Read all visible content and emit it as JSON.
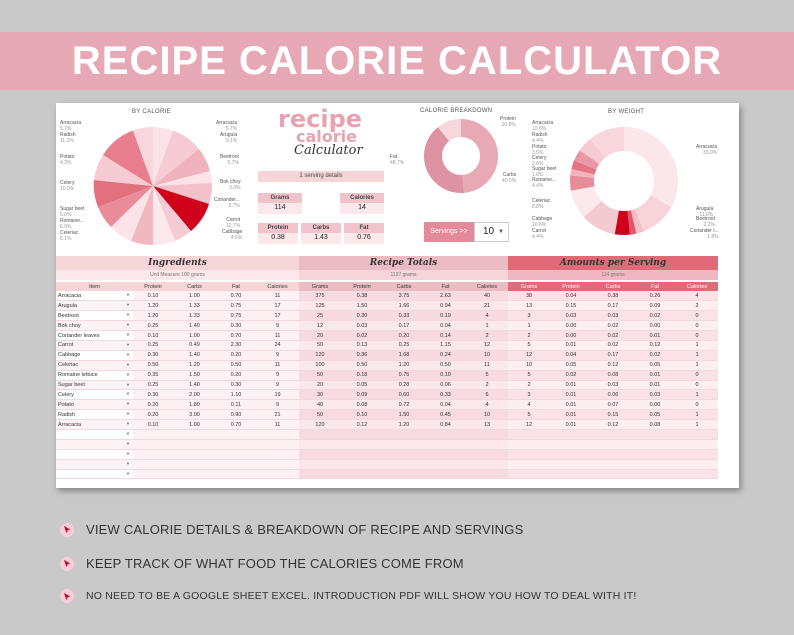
{
  "banner": {
    "title": "RECIPE CALORIE CALCULATOR"
  },
  "charts": {
    "by_calorie": {
      "title": "BY CALORIE",
      "left_labels": [
        {
          "name": "Arracacia",
          "pct": "5.7%"
        },
        {
          "name": "Radish",
          "pct": "11.2%"
        },
        {
          "name": "Potato",
          "pct": "4.3%"
        },
        {
          "name": "Celery",
          "pct": "10.0%"
        },
        {
          "name": "Sugar beet",
          "pct": "5.0%"
        },
        {
          "name": "Romaine...",
          "pct": "6.9%"
        },
        {
          "name": "Celeriac",
          "pct": "6.1%"
        }
      ],
      "right_labels": [
        {
          "name": "Arracacia",
          "pct": "5.7%"
        },
        {
          "name": "Arugula",
          "pct": "9.1%"
        },
        {
          "name": "Beetroot",
          "pct": "5.7%"
        },
        {
          "name": "Bok choy",
          "pct": "3.0%"
        },
        {
          "name": "Coriander...",
          "pct": "5.7%"
        },
        {
          "name": "Carrot",
          "pct": "12.7%"
        },
        {
          "name": "Cabbage",
          "pct": "4.6%"
        }
      ]
    },
    "breakdown": {
      "title": "CALORIE BREAKDOWN",
      "labels": [
        {
          "name": "Protein",
          "pct": "10.8%"
        },
        {
          "name": "Fat",
          "pct": "48.7%"
        },
        {
          "name": "Carbs",
          "pct": "40.5%"
        }
      ]
    },
    "by_weight": {
      "title": "BY WEIGHT",
      "left_labels": [
        {
          "name": "Arracacia",
          "pct": "10.6%"
        },
        {
          "name": "Radish",
          "pct": "4.4%"
        },
        {
          "name": "Potato",
          "pct": "3.5%"
        },
        {
          "name": "Celery",
          "pct": "2.6%"
        },
        {
          "name": "Sugar beet",
          "pct": "1.8%"
        },
        {
          "name": "Romaine...",
          "pct": "4.4%"
        },
        {
          "name": "Celeriac",
          "pct": "8.8%"
        },
        {
          "name": "Cabbage",
          "pct": "10.6%"
        },
        {
          "name": "Carrot",
          "pct": "4.4%"
        }
      ],
      "right_labels": [
        {
          "name": "Arracacia",
          "pct": "33.0%"
        },
        {
          "name": "Arugula",
          "pct": "11.0%"
        },
        {
          "name": "Beetroot",
          "pct": "2.2%"
        },
        {
          "name": "Coriander l...",
          "pct": "1.8%"
        }
      ]
    }
  },
  "logo": {
    "line1": "recipe",
    "line2": "calorie",
    "line3": "Calculator"
  },
  "serving": {
    "title": "1 serving details",
    "grams_label": "Grams",
    "grams_value": "114",
    "calories_label": "Calories",
    "calories_value": "14",
    "protein_label": "Protein",
    "protein_value": "0.38",
    "carbs_label": "Carbs",
    "carbs_value": "1.43",
    "fat_label": "Fat",
    "fat_value": "0.76"
  },
  "servings": {
    "label": "Servings >>",
    "value": "10"
  },
  "ingredients": {
    "title": "Ingredients",
    "subtitle": "Unit Measure 100 grams",
    "columns": [
      "Item",
      "Protein",
      "Carbs",
      "Fat",
      "Calories"
    ],
    "rows": [
      [
        "Arracacia",
        "0.10",
        "1.00",
        "0.70",
        "11"
      ],
      [
        "Arugula",
        "1.20",
        "1.33",
        "0.75",
        "17"
      ],
      [
        "Beetroot",
        "1.20",
        "1.33",
        "0.75",
        "17"
      ],
      [
        "Bok choy",
        "0.25",
        "1.40",
        "0.30",
        "9"
      ],
      [
        "Coriander leaves",
        "0.10",
        "1.00",
        "0.70",
        "11"
      ],
      [
        "Carrot",
        "0.25",
        "0.49",
        "2.30",
        "24"
      ],
      [
        "Cabbage",
        "0.30",
        "1.40",
        "0.20",
        "9"
      ],
      [
        "Celeriac",
        "0.50",
        "1.20",
        "0.50",
        "11"
      ],
      [
        "Romaine lettuce",
        "0.35",
        "1.50",
        "0.20",
        "9"
      ],
      [
        "Sugar beet",
        "0.25",
        "1.40",
        "0.30",
        "9"
      ],
      [
        "Celery",
        "0.30",
        "2.00",
        "1.10",
        "19"
      ],
      [
        "Potato",
        "0.20",
        "1.80",
        "0.11",
        "9"
      ],
      [
        "Radish",
        "0.20",
        "3.00",
        "0.90",
        "21"
      ],
      [
        "Arracacia",
        "0.10",
        "1.00",
        "0.70",
        "11"
      ]
    ]
  },
  "totals": {
    "title": "Recipe Totals",
    "subtitle": "1137 grams",
    "columns": [
      "Grams",
      "Protein",
      "Carbs",
      "Fat",
      "Calories"
    ],
    "rows": [
      [
        "375",
        "0.38",
        "3.75",
        "2.63",
        "40"
      ],
      [
        "125",
        "1.50",
        "1.66",
        "0.94",
        "21"
      ],
      [
        "25",
        "0.30",
        "0.33",
        "0.19",
        "4"
      ],
      [
        "12",
        "0.03",
        "0.17",
        "0.04",
        "1"
      ],
      [
        "20",
        "0.02",
        "0.20",
        "0.14",
        "2"
      ],
      [
        "50",
        "0.13",
        "0.25",
        "1.15",
        "12"
      ],
      [
        "120",
        "0.36",
        "1.68",
        "0.24",
        "10"
      ],
      [
        "100",
        "0.50",
        "1.20",
        "0.50",
        "11"
      ],
      [
        "50",
        "0.18",
        "0.75",
        "0.10",
        "5"
      ],
      [
        "20",
        "0.05",
        "0.28",
        "0.06",
        "2"
      ],
      [
        "30",
        "0.09",
        "0.60",
        "0.33",
        "6"
      ],
      [
        "40",
        "0.08",
        "0.72",
        "0.04",
        "4"
      ],
      [
        "50",
        "0.10",
        "1.50",
        "0.45",
        "10"
      ],
      [
        "120",
        "0.12",
        "1.20",
        "0.84",
        "13"
      ]
    ]
  },
  "per_serving": {
    "title": "Amounts per Serving",
    "subtitle": "114 grams",
    "columns": [
      "Grams",
      "Protein",
      "Carbs",
      "Fat",
      "Calories"
    ],
    "rows": [
      [
        "38",
        "0.04",
        "0.38",
        "0.26",
        "4"
      ],
      [
        "13",
        "0.15",
        "0.17",
        "0.09",
        "2"
      ],
      [
        "3",
        "0.03",
        "0.03",
        "0.02",
        "0"
      ],
      [
        "1",
        "0.00",
        "0.02",
        "0.00",
        "0"
      ],
      [
        "2",
        "0.00",
        "0.02",
        "0.01",
        "0"
      ],
      [
        "5",
        "0.01",
        "0.02",
        "0.12",
        "1"
      ],
      [
        "12",
        "0.04",
        "0.17",
        "0.02",
        "1"
      ],
      [
        "10",
        "0.05",
        "0.12",
        "0.05",
        "1"
      ],
      [
        "5",
        "0.02",
        "0.08",
        "0.01",
        "0"
      ],
      [
        "2",
        "0.01",
        "0.03",
        "0.01",
        "0"
      ],
      [
        "3",
        "0.01",
        "0.06",
        "0.03",
        "1"
      ],
      [
        "4",
        "0.01",
        "0.07",
        "0.00",
        "0"
      ],
      [
        "5",
        "0.01",
        "0.15",
        "0.05",
        "1"
      ],
      [
        "12",
        "0.01",
        "0.12",
        "0.08",
        "1"
      ]
    ]
  },
  "features": [
    "VIEW CALORIE DETAILS & BREAKDOWN OF RECIPE AND SERVINGS",
    "KEEP TRACK OF WHAT FOOD THE CALORIES COME FROM",
    "NO NEED TO BE A GOOGLE SHEET EXCEL. INTRODUCTION PDF WILL SHOW YOU HOW TO DEAL WITH IT!"
  ],
  "colors": {
    "banner": "#e5a8b4",
    "ingredients_head": "#f6d5d9",
    "totals_head": "#ecbcc4",
    "serving_head": "#e06a78",
    "accent_red": "#d0021b"
  }
}
